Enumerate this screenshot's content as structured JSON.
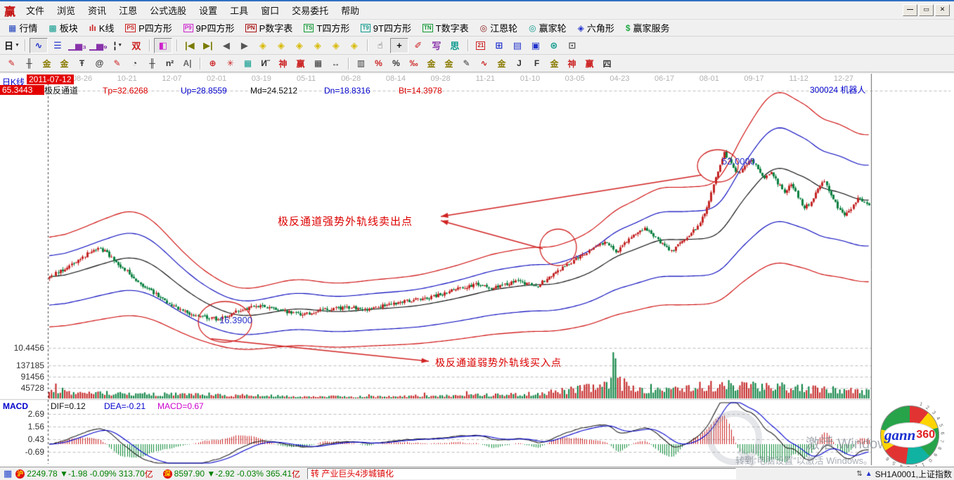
{
  "window": {
    "logo": "赢",
    "menu": [
      "文件",
      "浏览",
      "资讯",
      "江恩",
      "公式选股",
      "设置",
      "工具",
      "窗口",
      "交易委托",
      "帮助"
    ],
    "controls": [
      {
        "name": "minimize-button",
        "glyph": "—"
      },
      {
        "name": "restore-button",
        "glyph": "▭"
      },
      {
        "name": "close-button",
        "glyph": "✕"
      }
    ]
  },
  "toolbar_market": {
    "items": [
      {
        "name": "quotes",
        "label": "行情",
        "badge": "▦",
        "color": "#2244bb"
      },
      {
        "name": "blocks",
        "label": "板块",
        "badge": "▩",
        "color": "#0f9b8e"
      },
      {
        "name": "kline",
        "label": "K线",
        "badge": "ılı",
        "color": "#cc2222"
      },
      {
        "name": "p-square",
        "label": "P四方形",
        "badge": "PS",
        "color": "#cc2222",
        "boxed": true
      },
      {
        "name": "9p-square",
        "label": "9P四方形",
        "badge": "P9",
        "color": "#cc22cc",
        "boxed": true
      },
      {
        "name": "p-number",
        "label": "P数字表",
        "badge": "PN",
        "color": "#aa1111",
        "boxed": true
      },
      {
        "name": "t-square",
        "label": "T四方形",
        "badge": "TS",
        "color": "#119933",
        "boxed": true
      },
      {
        "name": "9t-square",
        "label": "9T四方形",
        "badge": "T9",
        "color": "#0f9b8e",
        "boxed": true
      },
      {
        "name": "t-number",
        "label": "T数字表",
        "badge": "TN",
        "color": "#119933",
        "boxed": true
      },
      {
        "name": "gann-wheel",
        "label": "江恩轮",
        "badge": "◎",
        "color": "#8b1a1a"
      },
      {
        "name": "winner-wheel",
        "label": "赢家轮",
        "badge": "◎",
        "color": "#0f9b8e"
      },
      {
        "name": "hexagon",
        "label": "六角形",
        "badge": "◈",
        "color": "#2233cc"
      },
      {
        "name": "winner-service",
        "label": "赢家服务",
        "badge": "$",
        "color": "#22aa44"
      }
    ]
  },
  "toolbar_tools": {
    "items": [
      {
        "name": "period-day",
        "glyph": "日",
        "color": "#111111",
        "dropdown": true
      },
      {
        "sep": true
      },
      {
        "name": "curve-window",
        "glyph": "∿",
        "color": "#2233cc",
        "selected": true
      },
      {
        "name": "info-list",
        "glyph": "☰",
        "color": "#2233cc"
      },
      {
        "name": "small-bars-3",
        "glyph": "▁▅₃",
        "color": "#8833aa"
      },
      {
        "name": "small-bars-9",
        "glyph": "▁▅₉",
        "color": "#8833aa"
      },
      {
        "name": "candle-style",
        "glyph": "¦",
        "color": "#111111",
        "dropdown": true
      },
      {
        "name": "pattern-tool",
        "glyph": "双",
        "color": "#cc2222"
      },
      {
        "sep": true
      },
      {
        "name": "color-chart",
        "glyph": "◧",
        "color": "#cc22cc",
        "selected": true
      },
      {
        "sep": true
      },
      {
        "name": "jump-first",
        "glyph": "|◀",
        "color": "#7a7a00"
      },
      {
        "name": "jump-last",
        "glyph": "▶|",
        "color": "#7a7a00"
      },
      {
        "name": "step-back",
        "glyph": "◀",
        "color": "#555555"
      },
      {
        "name": "step-forward",
        "glyph": "▶",
        "color": "#555555"
      },
      {
        "name": "shift-left",
        "glyph": "◈",
        "color": "#d8b800"
      },
      {
        "name": "shift-right",
        "glyph": "◈",
        "color": "#d8b800"
      },
      {
        "name": "compress-x",
        "glyph": "◈",
        "color": "#d8b800"
      },
      {
        "name": "expand-x",
        "glyph": "◈",
        "color": "#d8b800"
      },
      {
        "name": "compress-all",
        "glyph": "◈",
        "color": "#d8b800"
      },
      {
        "name": "expand-all",
        "glyph": "◈",
        "color": "#d8b800"
      },
      {
        "sep": true
      },
      {
        "name": "hand-tool",
        "glyph": "☝",
        "color": "#333333"
      },
      {
        "name": "crosshair-tool",
        "glyph": "+",
        "color": "#111111",
        "selected": true
      },
      {
        "name": "zoom-mark-tool",
        "glyph": "✐",
        "color": "#cc2222"
      },
      {
        "name": "stamp-tool",
        "glyph": "写",
        "color": "#8833aa"
      },
      {
        "name": "mind-tool",
        "glyph": "思",
        "color": "#0f9b8e"
      },
      {
        "sep": true
      },
      {
        "name": "calendar",
        "glyph": "21",
        "color": "#cc2222",
        "boxed": true
      },
      {
        "name": "calculator",
        "glyph": "⊞",
        "color": "#2233cc"
      },
      {
        "name": "notes",
        "glyph": "▤",
        "color": "#2233cc"
      },
      {
        "name": "save",
        "glyph": "▣",
        "color": "#2233cc"
      },
      {
        "name": "network",
        "glyph": "⊛",
        "color": "#0f9b8e"
      },
      {
        "name": "workstation",
        "glyph": "⊡",
        "color": "#555555"
      }
    ]
  },
  "toolbar_draw": {
    "items": [
      {
        "name": "gann-pen",
        "glyph": "✎",
        "color": "#cc2222"
      },
      {
        "name": "time-ruler",
        "glyph": "╫",
        "color": "#333333"
      },
      {
        "name": "gold-ruler-a",
        "glyph": "金",
        "color": "#8a7a00"
      },
      {
        "name": "gold-ruler-b",
        "glyph": "金",
        "color": "#8a7a00"
      },
      {
        "name": "fib-ruler",
        "glyph": "Ŧ",
        "color": "#333333"
      },
      {
        "name": "spiral-tool",
        "glyph": "@",
        "color": "#333333"
      },
      {
        "name": "mark-pen",
        "glyph": "✎",
        "color": "#cc2222"
      },
      {
        "name": "cycle-circle",
        "glyph": "◔",
        "color": "#333333"
      },
      {
        "name": "comb-ruler",
        "glyph": "╫",
        "color": "#333333"
      },
      {
        "name": "n-square",
        "glyph": "n²",
        "color": "#333333"
      },
      {
        "name": "mirror-line",
        "glyph": "A|",
        "color": "#666666"
      },
      {
        "sep": true
      },
      {
        "name": "target-tool",
        "glyph": "⊕",
        "color": "#cc2222"
      },
      {
        "name": "star-grid",
        "glyph": "✳",
        "color": "#cc2222"
      },
      {
        "name": "box-grid",
        "glyph": "▦",
        "color": "#0f9b8e"
      },
      {
        "name": "angle-marks",
        "glyph": "И˝",
        "color": "#333333"
      },
      {
        "name": "shen-tool",
        "glyph": "神",
        "color": "#cc2222"
      },
      {
        "name": "ying-tool",
        "glyph": "赢",
        "color": "#cc2222"
      },
      {
        "name": "grid-123",
        "glyph": "▦",
        "color": "#333333"
      },
      {
        "name": "width-measure",
        "glyph": "↔",
        "color": "#333333"
      },
      {
        "sep": true
      },
      {
        "name": "scale-list",
        "glyph": "▥",
        "color": "#333333"
      },
      {
        "name": "percent-channel",
        "glyph": "%",
        "color": "#cc2222"
      },
      {
        "name": "percent",
        "glyph": "%",
        "color": "#333333"
      },
      {
        "name": "percent-line",
        "glyph": "‰",
        "color": "#cc2222"
      },
      {
        "name": "gold-circle",
        "glyph": "金",
        "color": "#8a7a00"
      },
      {
        "name": "gold-lines",
        "glyph": "金",
        "color": "#8a7a00"
      },
      {
        "name": "ink-pen",
        "glyph": "✎",
        "color": "#333333"
      },
      {
        "name": "wave-tool",
        "glyph": "∿",
        "color": "#cc2222"
      },
      {
        "name": "gold-band",
        "glyph": "金",
        "color": "#8a7a00"
      },
      {
        "name": "j-ray",
        "glyph": "J",
        "color": "#333333"
      },
      {
        "name": "f-ray",
        "glyph": "F",
        "color": "#333333"
      },
      {
        "name": "gold-ray",
        "glyph": "金",
        "color": "#8a7a00"
      },
      {
        "name": "shen-ray",
        "glyph": "神",
        "color": "#cc2222"
      },
      {
        "name": "ying-ray",
        "glyph": "赢",
        "color": "#cc2222"
      },
      {
        "name": "four-ray",
        "glyph": "四",
        "color": "#333333"
      }
    ]
  },
  "chart_labels": {
    "period": "日K线",
    "date": "2011-07-12",
    "scale_top": "65.3443",
    "channel": "极反通道",
    "tp": "Tp=32.6268",
    "up": "Up=28.8559",
    "md": "Md=24.5212",
    "dn": "Dn=18.8316",
    "bt": "Bt=14.3978",
    "symbol": "300024 机器人",
    "price_low": "10.4456",
    "vol_ticks": [
      "137185",
      "91456",
      "45728"
    ],
    "indicator": "MACD",
    "dif": "DIF=0.12",
    "dea": "DEA=-0.21",
    "macd": "MACD=0.67",
    "macd_ticks": [
      "2.69",
      "1.56",
      "0.43",
      "-0.69"
    ]
  },
  "chart_data": {
    "type": "candlestick",
    "panels": [
      "price+极反通道 channel",
      "volume",
      "MACD"
    ],
    "symbol_code": "300024",
    "symbol_name": "机器人",
    "period": "日K线",
    "info_date": "2011-07-12",
    "price_scale_top": 65.3443,
    "price_gridline_low": 10.4456,
    "channel": {
      "label": "极反通道",
      "Tp": 32.6268,
      "Up": 28.8559,
      "Md": 24.5212,
      "Dn": 18.8316,
      "Bt": 14.3978
    },
    "volume_axis": [
      137185,
      91456,
      45728
    ],
    "macd_axis": [
      2.69,
      1.56,
      0.43,
      -0.69
    ],
    "macd_values": {
      "DIF": 0.12,
      "DEA": -0.21,
      "MACD": 0.67
    },
    "x_dates": [
      "08-26",
      "10-21",
      "12-07",
      "02-01",
      "03-19",
      "05-11",
      "06-28",
      "08-14",
      "09-28",
      "11-21",
      "01-10",
      "03-05",
      "04-23",
      "06-17",
      "08-01",
      "09-17",
      "11-12",
      "12-27"
    ],
    "price_path_anchors": [
      [
        0,
        25.2
      ],
      [
        6,
        26.8
      ],
      [
        12,
        28.6
      ],
      [
        18,
        30.4
      ],
      [
        22,
        31.6
      ],
      [
        26,
        30.2
      ],
      [
        33,
        27.2
      ],
      [
        42,
        23.6
      ],
      [
        52,
        20.4
      ],
      [
        62,
        17.8
      ],
      [
        70,
        16.9
      ],
      [
        76,
        16.4
      ],
      [
        84,
        18.1
      ],
      [
        94,
        19.3
      ],
      [
        104,
        18.2
      ],
      [
        114,
        17.4
      ],
      [
        124,
        18.5
      ],
      [
        134,
        18.9
      ],
      [
        144,
        18.5
      ],
      [
        154,
        19.7
      ],
      [
        164,
        20.5
      ],
      [
        174,
        21.3
      ],
      [
        184,
        22.9
      ],
      [
        192,
        23.7
      ],
      [
        200,
        22.9
      ],
      [
        210,
        24.3
      ],
      [
        220,
        23.5
      ],
      [
        228,
        26.3
      ],
      [
        236,
        28.7
      ],
      [
        244,
        31.2
      ],
      [
        250,
        32.6
      ],
      [
        255,
        30.6
      ],
      [
        262,
        33.6
      ],
      [
        268,
        35.6
      ],
      [
        274,
        33.1
      ],
      [
        280,
        30.6
      ],
      [
        286,
        33.2
      ],
      [
        292,
        35.8
      ],
      [
        295,
        38.5
      ],
      [
        298,
        43.0
      ],
      [
        301,
        47.5
      ],
      [
        304,
        51.3
      ],
      [
        307,
        49.0
      ],
      [
        310,
        47.0
      ],
      [
        313,
        48.5
      ],
      [
        316,
        49.8
      ],
      [
        319,
        48.0
      ],
      [
        322,
        46.0
      ],
      [
        325,
        47.4
      ],
      [
        328,
        45.0
      ],
      [
        331,
        43.2
      ],
      [
        334,
        44.6
      ],
      [
        337,
        42.2
      ],
      [
        340,
        39.8
      ],
      [
        343,
        41.0
      ],
      [
        346,
        43.6
      ],
      [
        349,
        45.4
      ],
      [
        352,
        42.6
      ],
      [
        355,
        40.0
      ],
      [
        358,
        38.4
      ],
      [
        361,
        39.6
      ],
      [
        364,
        41.8
      ],
      [
        367,
        41.0
      ],
      [
        369,
        40.5
      ]
    ],
    "volume_profile_anchors": [
      [
        0,
        1.4
      ],
      [
        25,
        1.2
      ],
      [
        50,
        1.0
      ],
      [
        80,
        0.8
      ],
      [
        110,
        0.5
      ],
      [
        150,
        0.45
      ],
      [
        185,
        0.7
      ],
      [
        215,
        1.0
      ],
      [
        235,
        1.9
      ],
      [
        250,
        2.8
      ],
      [
        256,
        3.8
      ],
      [
        264,
        2.2
      ],
      [
        285,
        2.5
      ],
      [
        305,
        3.0
      ],
      [
        325,
        2.7
      ],
      [
        345,
        2.1
      ],
      [
        360,
        1.8
      ],
      [
        369,
        1.5
      ]
    ],
    "annotations": {
      "sell_text": "极反通道强势外轨线卖出点",
      "buy_text": "极反通道弱势外轨线买入点",
      "high_mark": "52.0000",
      "low_mark": "16.3900",
      "ellipses": [
        [
          320,
          456,
          38,
          29
        ],
        [
          794,
          350,
          26,
          26
        ],
        [
          1021,
          234,
          29,
          23
        ]
      ],
      "arrows": [
        [
          998,
          247,
          627,
          306
        ],
        [
          772,
          352,
          627,
          312
        ],
        [
          300,
          480,
          610,
          512
        ]
      ]
    }
  },
  "watermark": {
    "line1": "激活 Windows",
    "line2": "转到“电脑设置”以激活 Windows。"
  },
  "logo": {
    "word": "gann",
    "num": "360",
    "digits": "1234567890123456"
  },
  "status": {
    "sh_badge": "沪",
    "sh_text": "2249.78 ▼-1.98 -0.09% 313.70",
    "sh_unit": "亿",
    "sz_badge": "深",
    "sz_text": "8597.90 ▼-2.92 -0.03% 365.41",
    "sz_unit": "亿",
    "news": "转 产业巨头4涉城镇化",
    "index": "SH1A0001,上证指数"
  }
}
